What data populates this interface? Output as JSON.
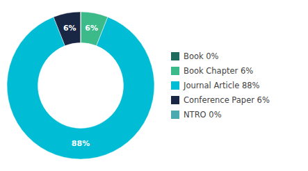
{
  "chart_data": {
    "type": "donut",
    "categories": [
      "Book 0%",
      "Book Chapter 6%",
      "Journal Article 88%",
      "Conference Paper 6%",
      "NTRO 0%"
    ],
    "values": [
      0.001,
      6,
      88,
      6,
      0.001
    ],
    "value_labels": [
      null,
      "6%",
      "88%",
      "6%",
      null
    ],
    "data_labels": true,
    "colors": [
      "#1e6b5e",
      "#3dba8a",
      "#00bcd4",
      "#1a2744",
      "#4baab0"
    ],
    "legend": "right"
  }
}
